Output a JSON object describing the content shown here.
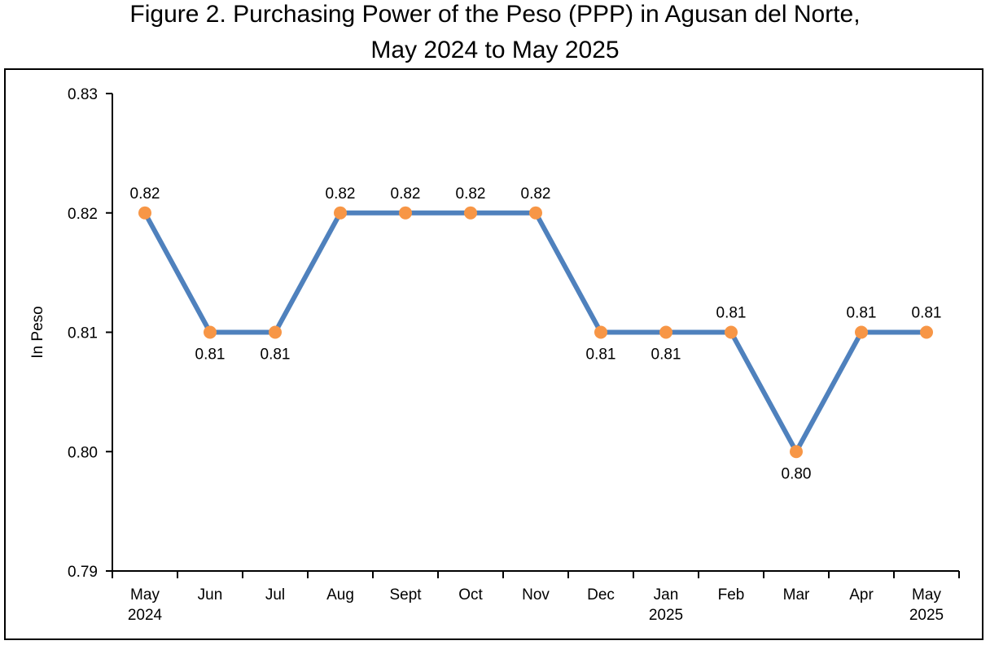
{
  "chart_data": {
    "type": "line",
    "title": "Figure 2. Purchasing Power of the Peso (PPP) in Agusan del Norte,",
    "subtitle": "May 2024 to May 2025",
    "xlabel": "",
    "ylabel": "In Peso",
    "ylim": [
      0.79,
      0.83
    ],
    "y_ticks": [
      "0.79",
      "0.80",
      "0.81",
      "0.82",
      "0.83"
    ],
    "categories": [
      [
        "May",
        "2024"
      ],
      [
        "Jun"
      ],
      [
        "Jul"
      ],
      [
        "Aug"
      ],
      [
        "Sept"
      ],
      [
        "Oct"
      ],
      [
        "Nov"
      ],
      [
        "Dec"
      ],
      [
        "Jan",
        "2025"
      ],
      [
        "Feb"
      ],
      [
        "Mar"
      ],
      [
        "Apr"
      ],
      [
        "May",
        "2025"
      ]
    ],
    "values": [
      0.82,
      0.81,
      0.81,
      0.82,
      0.82,
      0.82,
      0.82,
      0.81,
      0.81,
      0.81,
      0.8,
      0.81,
      0.81
    ],
    "data_labels": [
      "0.82",
      "0.81",
      "0.81",
      "0.82",
      "0.82",
      "0.82",
      "0.82",
      "0.81",
      "0.81",
      "0.81",
      "0.80",
      "0.81",
      "0.81"
    ],
    "label_positions": [
      "above",
      "below",
      "below",
      "above",
      "above",
      "above",
      "above",
      "below",
      "below",
      "above",
      "below",
      "above",
      "above"
    ],
    "line_color": "#4F81BD",
    "marker_color": "#F79646",
    "grid": false,
    "legend": "none"
  }
}
